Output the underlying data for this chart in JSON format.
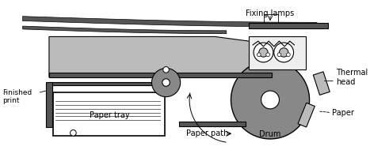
{
  "colors": {
    "dark_gray": "#555555",
    "medium_gray": "#888888",
    "light_gray": "#bbbbbb",
    "white": "#ffffff",
    "black": "#000000",
    "near_white": "#eeeeee"
  },
  "labels": {
    "fixing_lamps": "Fixing lamps",
    "thermal_head": "Thermal\nhead",
    "paper": "Paper",
    "drum": "Drum",
    "paper_path": "Paper path",
    "paper_tray": "Paper tray",
    "finished_print": "Finished\nprint"
  }
}
